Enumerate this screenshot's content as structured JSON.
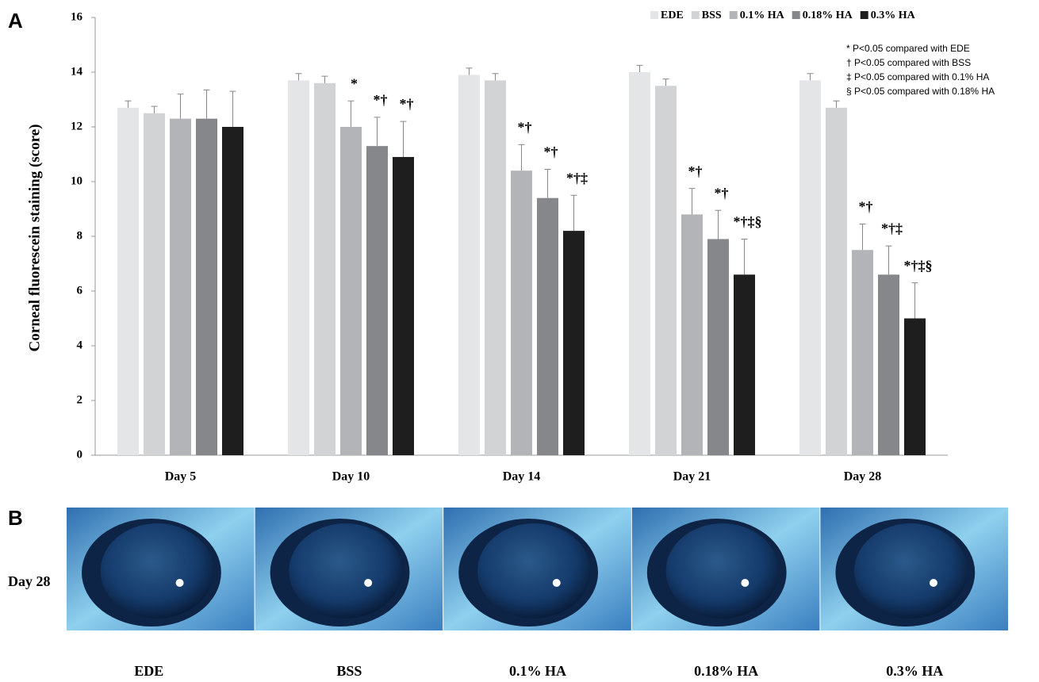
{
  "panel_a_label": "A",
  "panel_b_label": "B",
  "chart_data": {
    "type": "bar",
    "ylabel": "Corneal fluorescein staining (score)",
    "categories": [
      "Day 5",
      "Day 10",
      "Day 14",
      "Day 21",
      "Day 28"
    ],
    "series": [
      {
        "name": "EDE",
        "color": "#e4e5e7",
        "values": [
          12.7,
          13.7,
          13.9,
          14.0,
          13.7
        ],
        "errors": [
          0.25,
          0.25,
          0.25,
          0.25,
          0.25
        ],
        "annotations": [
          null,
          null,
          null,
          null,
          null
        ]
      },
      {
        "name": "BSS",
        "color": "#d2d3d5",
        "values": [
          12.5,
          13.6,
          13.7,
          13.5,
          12.7
        ],
        "errors": [
          0.25,
          0.25,
          0.25,
          0.25,
          0.25
        ],
        "annotations": [
          null,
          null,
          null,
          null,
          null
        ]
      },
      {
        "name": "0.1% HA",
        "color": "#b3b4b7",
        "values": [
          12.3,
          12.0,
          10.4,
          8.8,
          7.5
        ],
        "errors": [
          0.9,
          0.95,
          0.95,
          0.95,
          0.95
        ],
        "annotations": [
          null,
          "*",
          "*†",
          "*†",
          "*†"
        ]
      },
      {
        "name": "0.18% HA",
        "color": "#86878a",
        "values": [
          12.3,
          11.3,
          9.4,
          7.9,
          6.6
        ],
        "errors": [
          1.05,
          1.05,
          1.05,
          1.05,
          1.05
        ],
        "annotations": [
          null,
          "*†",
          "*†",
          "*†",
          "*†‡"
        ]
      },
      {
        "name": "0.3% HA",
        "color": "#1e1e1e",
        "values": [
          12.0,
          10.9,
          8.2,
          6.6,
          5.0
        ],
        "errors": [
          1.3,
          1.3,
          1.3,
          1.3,
          1.3
        ],
        "annotations": [
          null,
          "*†",
          "*†‡",
          "*†‡§",
          "*†‡§"
        ]
      }
    ],
    "ylim": [
      0,
      16
    ],
    "yticks": [
      0,
      2,
      4,
      6,
      8,
      10,
      12,
      14,
      16
    ],
    "legend_position": "top-right",
    "footnotes": [
      "* P<0.05 compared with EDE",
      "† P<0.05 compared with BSS",
      "‡ P<0.05 compared with 0.1% HA",
      "§ P<0.05 compared with 0.18% HA"
    ]
  },
  "images": {
    "row_label": "Day 28",
    "labels": [
      "EDE",
      "BSS",
      "0.1% HA",
      "0.18% HA",
      "0.3% HA"
    ]
  }
}
